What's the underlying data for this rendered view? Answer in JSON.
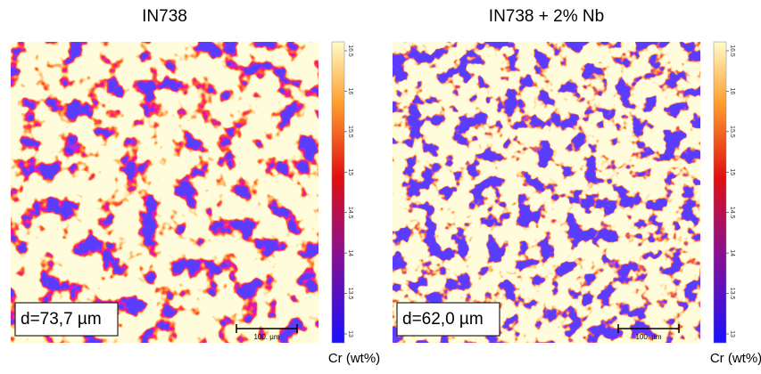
{
  "panels": [
    {
      "title": "IN738",
      "size_label": "d=73,7 µm",
      "scale_bar_label": "100. µm",
      "colorbar": {
        "label": "Cr (wt%)",
        "lim": [
          13,
          16.5
        ],
        "ticks": [
          13,
          13.5,
          14,
          14.5,
          15,
          15.5,
          16,
          16.5
        ]
      }
    },
    {
      "title": "IN738 + 2% Nb",
      "size_label": "d=62,0 µm",
      "scale_bar_label": "100. µm",
      "colorbar": {
        "label": "Cr (wt%)",
        "lim": [
          13,
          16.5
        ],
        "ticks": [
          13,
          13.5,
          14,
          14.5,
          15,
          15.5,
          16,
          16.5
        ]
      }
    }
  ]
}
